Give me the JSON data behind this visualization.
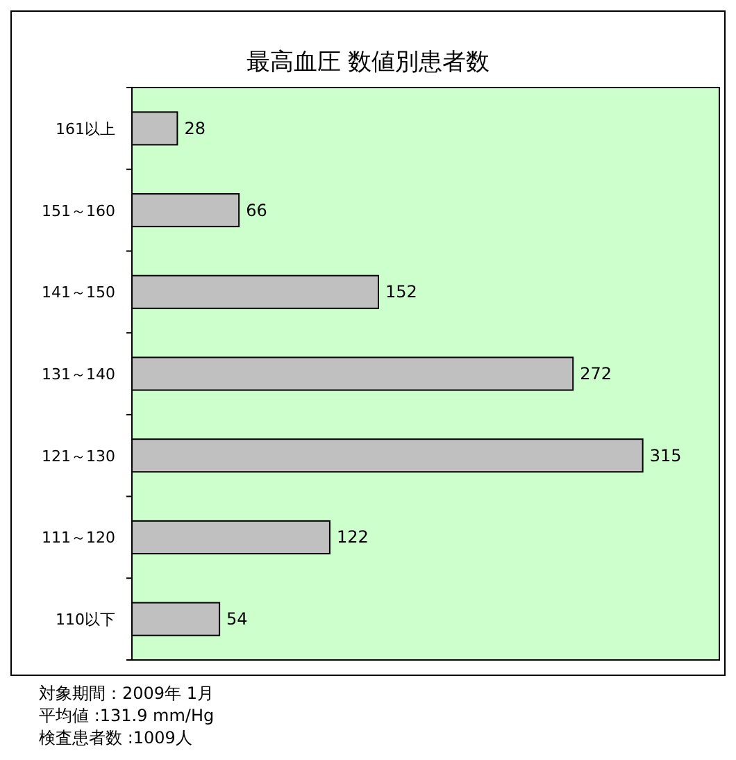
{
  "chart_data": {
    "type": "bar",
    "orientation": "horizontal",
    "title": "最高血圧 数値別患者数",
    "categories": [
      "161以上",
      "151～160",
      "141～150",
      "131～140",
      "121～130",
      "111～120",
      "110以下"
    ],
    "values": [
      28,
      66,
      152,
      272,
      315,
      122,
      54
    ],
    "color": "#c0c0c0",
    "data_labels": true,
    "annotations": [
      "対象期間：2009年 1月",
      "平均値 :131.9 mm/Hg",
      "検査患者数 :1009人"
    ]
  }
}
